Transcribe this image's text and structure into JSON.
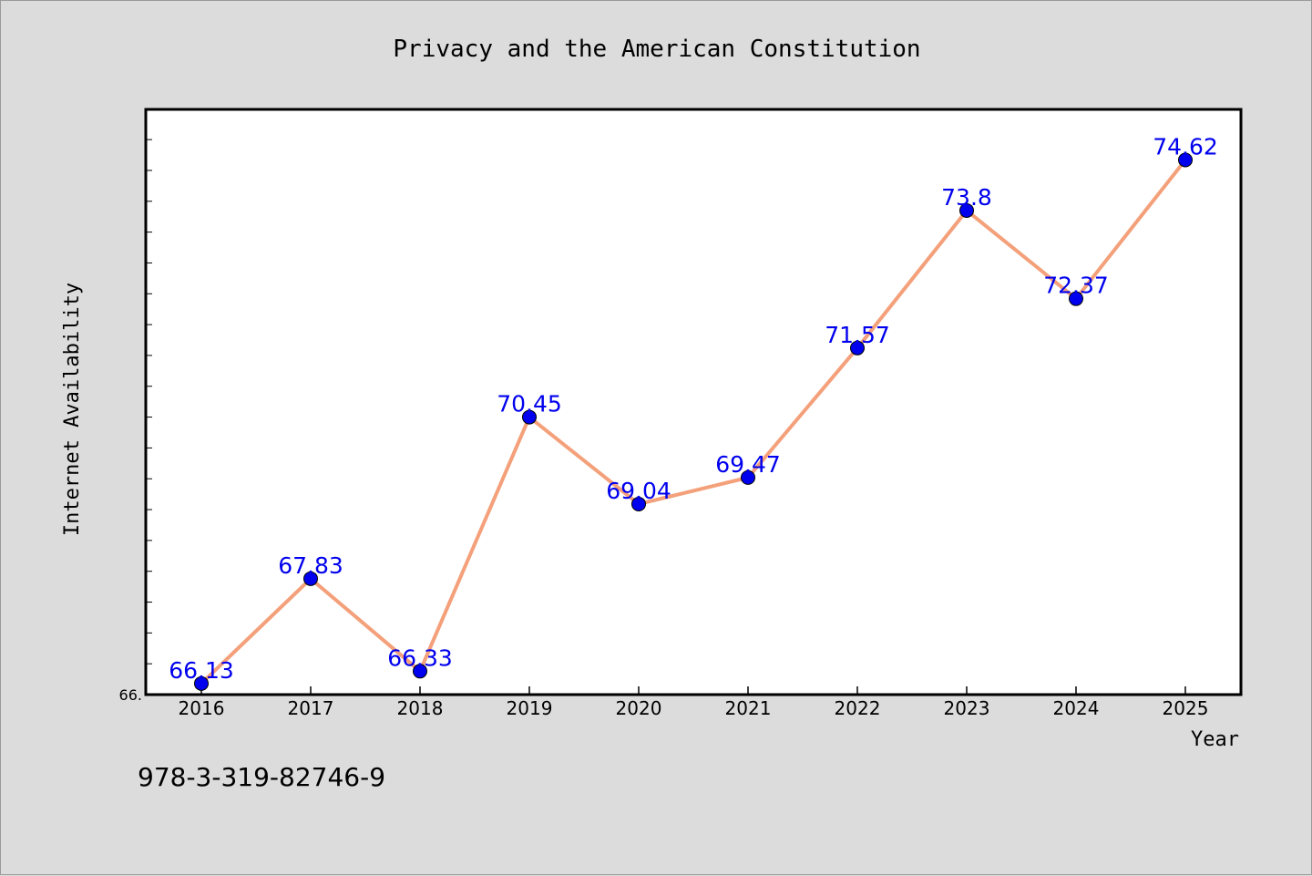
{
  "footnote": "978-3-319-82746-9",
  "chart_data": {
    "type": "line",
    "title": "Privacy and the American Constitution",
    "xlabel": "Year",
    "ylabel": "Internet Availability",
    "categories": [
      "2016",
      "2017",
      "2018",
      "2019",
      "2020",
      "2021",
      "2022",
      "2023",
      "2024",
      "2025"
    ],
    "series": [
      {
        "values": [
          66.13,
          67.83,
          66.33,
          70.45,
          69.04,
          69.47,
          71.57,
          73.8,
          72.37,
          74.62
        ],
        "value_labels": [
          "66.13",
          "67.83",
          "66.33",
          "70.45",
          "69.04",
          "69.47",
          "71.57",
          "73.8",
          "72.37",
          "74.62"
        ],
        "line_color": "#f4a07a",
        "marker_color": "#0000ee",
        "label_color": "#0000ee"
      }
    ],
    "ylim": [
      65.95,
      75.44
    ],
    "y_tick_labels": [
      {
        "value": 65.95,
        "label": "66."
      }
    ],
    "y_minor_step": 0.5,
    "grid": false,
    "legend": "none",
    "colors": {
      "background": "#dcdcdc",
      "plot_background": "#ffffff",
      "axis": "#000000"
    }
  }
}
